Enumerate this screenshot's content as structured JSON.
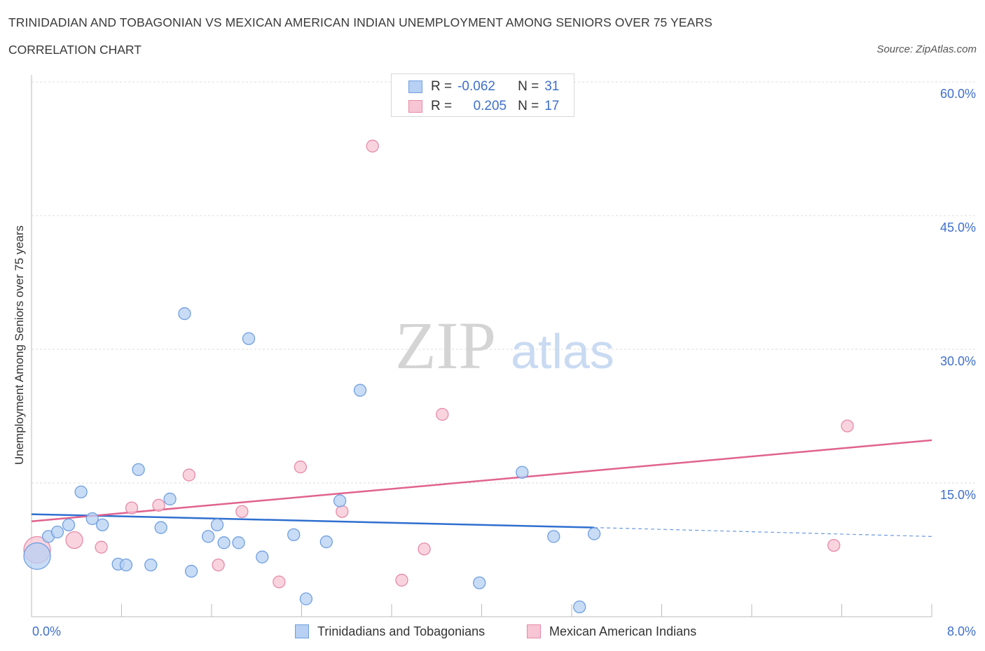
{
  "header": {
    "title": "TRINIDADIAN AND TOBAGONIAN VS MEXICAN AMERICAN INDIAN UNEMPLOYMENT AMONG SENIORS OVER 75 YEARS",
    "subtitle": "CORRELATION CHART",
    "source": "Source: ZipAtlas.com"
  },
  "watermark": {
    "zip": "ZIP",
    "atlas": "atlas"
  },
  "stats_legend": {
    "rows": [
      {
        "r_label": "R =",
        "r_value": "-0.062",
        "n_label": "N =",
        "n_value": "31"
      },
      {
        "r_label": "R =",
        "r_value": "0.205",
        "n_label": "N =",
        "n_value": "17"
      }
    ]
  },
  "colors": {
    "series1_fill": "#b7d0f3",
    "series1_stroke": "#6f9fe0",
    "series1_line": "#2f6fcf",
    "series2_fill": "#f7c5d4",
    "series2_stroke": "#e68aa8",
    "series2_line": "#e0638f",
    "axis_text": "#3f6fcc",
    "grid": "#dddddd"
  },
  "chart_data": {
    "type": "scatter",
    "title": "TRINIDADIAN AND TOBAGONIAN VS MEXICAN AMERICAN INDIAN UNEMPLOYMENT AMONG SENIORS OVER 75 YEARS",
    "xlabel": "",
    "ylabel": "Unemployment Among Seniors over 75 years",
    "xlim": [
      0,
      8
    ],
    "ylim": [
      0,
      60
    ],
    "x_tick_labels": [
      "0.0%",
      "8.0%"
    ],
    "y_ticks": [
      15,
      30,
      45,
      60
    ],
    "y_tick_labels": [
      "15.0%",
      "30.0%",
      "45.0%",
      "60.0%"
    ],
    "grid": true,
    "series": [
      {
        "name": "Trinidadians and Tobagonians",
        "r": -0.062,
        "n": 31,
        "points": [
          {
            "x": 0.05,
            "y": 6.8,
            "size": "large"
          },
          {
            "x": 0.15,
            "y": 9.0
          },
          {
            "x": 0.23,
            "y": 9.5
          },
          {
            "x": 0.33,
            "y": 10.3
          },
          {
            "x": 0.44,
            "y": 14.0
          },
          {
            "x": 0.54,
            "y": 11.0
          },
          {
            "x": 0.63,
            "y": 10.3
          },
          {
            "x": 0.77,
            "y": 5.9
          },
          {
            "x": 0.84,
            "y": 5.8
          },
          {
            "x": 0.95,
            "y": 16.5
          },
          {
            "x": 1.06,
            "y": 5.8
          },
          {
            "x": 1.15,
            "y": 10.0
          },
          {
            "x": 1.23,
            "y": 13.2
          },
          {
            "x": 1.36,
            "y": 34.0
          },
          {
            "x": 1.42,
            "y": 5.1
          },
          {
            "x": 1.57,
            "y": 9.0
          },
          {
            "x": 1.65,
            "y": 10.3
          },
          {
            "x": 1.71,
            "y": 8.3
          },
          {
            "x": 1.84,
            "y": 8.3
          },
          {
            "x": 1.93,
            "y": 31.2
          },
          {
            "x": 2.05,
            "y": 6.7
          },
          {
            "x": 2.33,
            "y": 9.2
          },
          {
            "x": 2.44,
            "y": 2.0
          },
          {
            "x": 2.62,
            "y": 8.4
          },
          {
            "x": 2.74,
            "y": 13.0
          },
          {
            "x": 2.92,
            "y": 25.4
          },
          {
            "x": 3.98,
            "y": 3.8
          },
          {
            "x": 4.36,
            "y": 16.2
          },
          {
            "x": 4.64,
            "y": 9.0
          },
          {
            "x": 4.87,
            "y": 1.1
          },
          {
            "x": 5.0,
            "y": 9.3
          }
        ],
        "trend": {
          "x0": 0,
          "y0": 11.5,
          "x1": 5.0,
          "y1": 10.0,
          "dashed_to_x": 8.0,
          "dashed_to_y": 9.0
        }
      },
      {
        "name": "Mexican American Indians",
        "r": 0.205,
        "n": 17,
        "points": [
          {
            "x": 0.05,
            "y": 7.5,
            "size": "large"
          },
          {
            "x": 0.38,
            "y": 8.6,
            "size": "medium"
          },
          {
            "x": 0.62,
            "y": 7.8
          },
          {
            "x": 0.89,
            "y": 12.2
          },
          {
            "x": 1.13,
            "y": 12.5
          },
          {
            "x": 1.4,
            "y": 15.9
          },
          {
            "x": 1.66,
            "y": 5.8
          },
          {
            "x": 1.87,
            "y": 11.8
          },
          {
            "x": 2.2,
            "y": 3.9
          },
          {
            "x": 2.39,
            "y": 16.8
          },
          {
            "x": 2.76,
            "y": 11.8
          },
          {
            "x": 3.03,
            "y": 52.8
          },
          {
            "x": 3.29,
            "y": 4.1
          },
          {
            "x": 3.49,
            "y": 7.6
          },
          {
            "x": 3.65,
            "y": 22.7
          },
          {
            "x": 7.13,
            "y": 8.0
          },
          {
            "x": 7.25,
            "y": 21.4
          }
        ],
        "trend": {
          "x0": 0,
          "y0": 10.7,
          "x1": 8.0,
          "y1": 19.8
        }
      }
    ]
  },
  "bottom_legend": {
    "items": [
      {
        "label": "Trinidadians and Tobagonians"
      },
      {
        "label": "Mexican American Indians"
      }
    ]
  }
}
